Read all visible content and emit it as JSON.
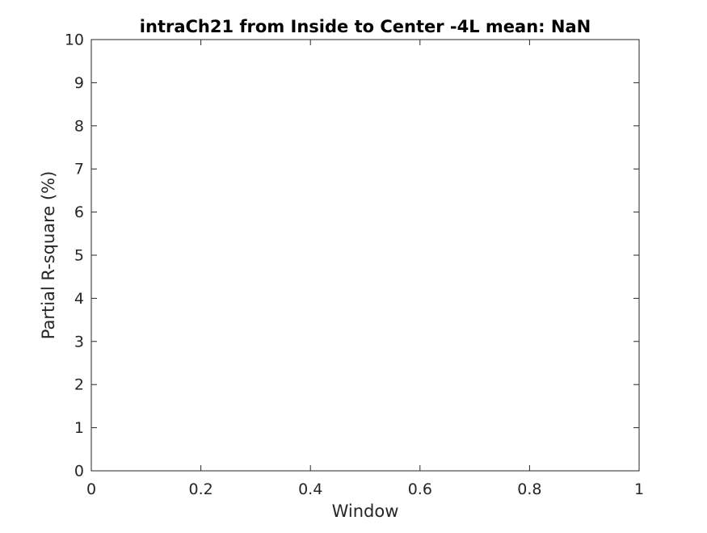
{
  "chart_data": {
    "type": "line",
    "title": "intraCh21 from Inside to Center -4L mean: NaN",
    "xlabel": "Window",
    "ylabel": "Partial R-square (%)",
    "xlim": [
      0,
      1
    ],
    "ylim": [
      0,
      10
    ],
    "xticks": [
      0,
      0.2,
      0.4,
      0.6,
      0.8,
      1
    ],
    "xtick_labels": [
      "0",
      "0.2",
      "0.4",
      "0.6",
      "0.8",
      "1"
    ],
    "yticks": [
      0,
      1,
      2,
      3,
      4,
      5,
      6,
      7,
      8,
      9,
      10
    ],
    "ytick_labels": [
      "0",
      "1",
      "2",
      "3",
      "4",
      "5",
      "6",
      "7",
      "8",
      "9",
      "10"
    ],
    "series": [],
    "grid": false,
    "box": true,
    "colors": {
      "axis": "#262626",
      "title": "#000000",
      "background": "#ffffff"
    }
  }
}
